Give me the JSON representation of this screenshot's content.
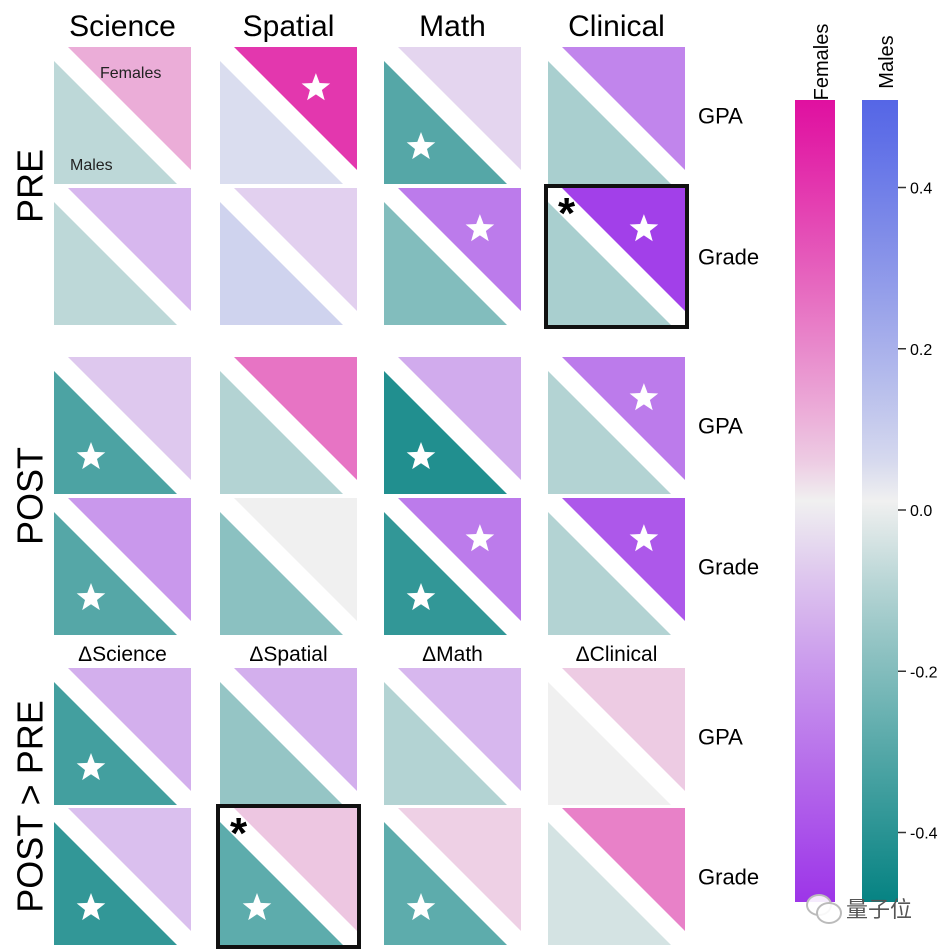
{
  "chart_data": {
    "type": "heatmap",
    "subtype": "split-triangle matrix (upper-right = Females, lower-left = Males)",
    "columns": [
      "Science",
      "Spatial",
      "Math",
      "Clinical"
    ],
    "delta_columns": [
      "ΔScience",
      "ΔSpatial",
      "ΔMath",
      "ΔClinical"
    ],
    "sections": [
      "PRE",
      "POST",
      "POST > PRE"
    ],
    "row_labels": [
      "GPA",
      "Grade"
    ],
    "legend_in_cell": {
      "upper": "Females",
      "lower": "Males"
    },
    "colorbars": [
      {
        "title": "Females",
        "range": [
          -0.5,
          0.5
        ],
        "low_color": "#9b30e8",
        "mid_color": "#f0f0f0",
        "high_color": "#e010a0"
      },
      {
        "title": "Males",
        "range": [
          -0.5,
          0.5
        ],
        "low_color": "#008080",
        "mid_color": "#f0f0f0",
        "high_color": "#5566e6"
      }
    ],
    "colorbar_ticks": [
      0.4,
      0.2,
      0.0,
      -0.2,
      -0.4
    ],
    "colorbar_tick_labels": [
      "0.4",
      "0.2",
      "0.0",
      "-0.2",
      "-0.4"
    ],
    "cells": [
      {
        "section": "PRE",
        "row": "GPA",
        "values": [
          {
            "col": "Science",
            "females": 0.12,
            "males": -0.08,
            "f_sig": false,
            "m_sig": false,
            "boxed": false
          },
          {
            "col": "Spatial",
            "females": 0.4,
            "males": 0.05,
            "f_sig": true,
            "m_sig": false,
            "boxed": false
          },
          {
            "col": "Math",
            "females": -0.05,
            "males": -0.3,
            "f_sig": false,
            "m_sig": true,
            "boxed": false
          },
          {
            "col": "Clinical",
            "females": -0.25,
            "males": -0.12,
            "f_sig": false,
            "m_sig": false,
            "boxed": false
          }
        ]
      },
      {
        "section": "PRE",
        "row": "Grade",
        "values": [
          {
            "col": "Science",
            "females": -0.12,
            "males": -0.08,
            "f_sig": false,
            "m_sig": false,
            "boxed": false
          },
          {
            "col": "Spatial",
            "females": -0.06,
            "males": 0.08,
            "f_sig": false,
            "m_sig": false,
            "boxed": false
          },
          {
            "col": "Math",
            "females": -0.28,
            "males": -0.2,
            "f_sig": true,
            "m_sig": false,
            "boxed": false
          },
          {
            "col": "Clinical",
            "females": -0.45,
            "males": -0.12,
            "f_sig": true,
            "m_sig": false,
            "boxed": true
          }
        ]
      },
      {
        "section": "POST",
        "row": "GPA",
        "values": [
          {
            "col": "Science",
            "females": -0.08,
            "males": -0.32,
            "f_sig": false,
            "m_sig": true,
            "boxed": false
          },
          {
            "col": "Spatial",
            "females": 0.25,
            "males": -0.1,
            "f_sig": false,
            "m_sig": false,
            "boxed": false
          },
          {
            "col": "Math",
            "females": -0.15,
            "males": -0.42,
            "f_sig": false,
            "m_sig": true,
            "boxed": false
          },
          {
            "col": "Clinical",
            "females": -0.28,
            "males": -0.1,
            "f_sig": true,
            "m_sig": false,
            "boxed": false
          }
        ]
      },
      {
        "section": "POST",
        "row": "Grade",
        "values": [
          {
            "col": "Science",
            "females": -0.2,
            "males": -0.3,
            "f_sig": false,
            "m_sig": true,
            "boxed": false
          },
          {
            "col": "Spatial",
            "females": 0.0,
            "males": -0.18,
            "f_sig": false,
            "m_sig": false,
            "boxed": false
          },
          {
            "col": "Math",
            "females": -0.28,
            "males": -0.38,
            "f_sig": true,
            "m_sig": true,
            "boxed": false
          },
          {
            "col": "Clinical",
            "females": -0.38,
            "males": -0.1,
            "f_sig": true,
            "m_sig": false,
            "boxed": false
          }
        ]
      },
      {
        "section": "POST > PRE",
        "row": "GPA",
        "values": [
          {
            "col": "ΔScience",
            "females": -0.14,
            "males": -0.34,
            "f_sig": false,
            "m_sig": true,
            "boxed": false
          },
          {
            "col": "ΔSpatial",
            "females": -0.14,
            "males": -0.16,
            "f_sig": false,
            "m_sig": false,
            "boxed": false
          },
          {
            "col": "ΔMath",
            "females": -0.12,
            "males": -0.1,
            "f_sig": false,
            "m_sig": false,
            "boxed": false
          },
          {
            "col": "ΔClinical",
            "females": 0.06,
            "males": 0.0,
            "f_sig": false,
            "m_sig": false,
            "boxed": false
          }
        ]
      },
      {
        "section": "POST > PRE",
        "row": "Grade",
        "values": [
          {
            "col": "ΔScience",
            "females": -0.1,
            "males": -0.38,
            "f_sig": false,
            "m_sig": true,
            "boxed": false
          },
          {
            "col": "ΔSpatial",
            "females": 0.07,
            "males": -0.28,
            "f_sig": false,
            "m_sig": true,
            "boxed": true
          },
          {
            "col": "ΔMath",
            "females": 0.05,
            "males": -0.28,
            "f_sig": false,
            "m_sig": true,
            "boxed": false
          },
          {
            "col": "ΔClinical",
            "females": 0.22,
            "males": -0.04,
            "f_sig": false,
            "m_sig": false,
            "boxed": false
          }
        ]
      }
    ],
    "significance_marker": "★",
    "box_marker": "*"
  },
  "watermark": {
    "text": "量子位"
  }
}
